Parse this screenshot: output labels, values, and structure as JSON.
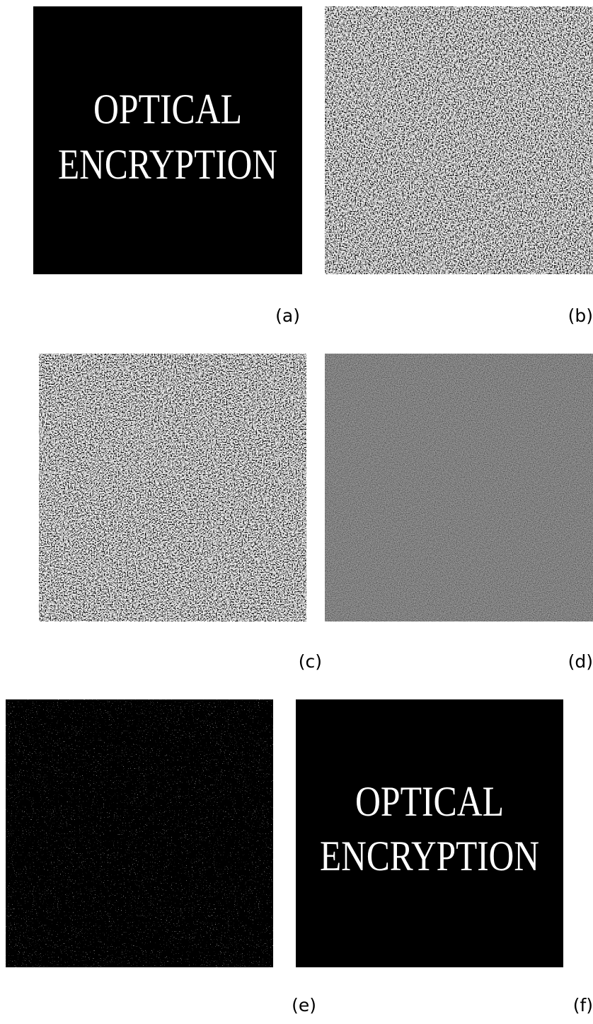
{
  "panels": [
    {
      "label": "(a)",
      "lines": [
        "OPTICAL",
        "ENCRYPTION"
      ]
    },
    {
      "label": "(b)"
    },
    {
      "label": "(c)"
    },
    {
      "label": "(d)"
    },
    {
      "label": "(e)"
    },
    {
      "label": "(f)",
      "lines": [
        "OPTICAL",
        "ENCRYPTION"
      ]
    }
  ]
}
